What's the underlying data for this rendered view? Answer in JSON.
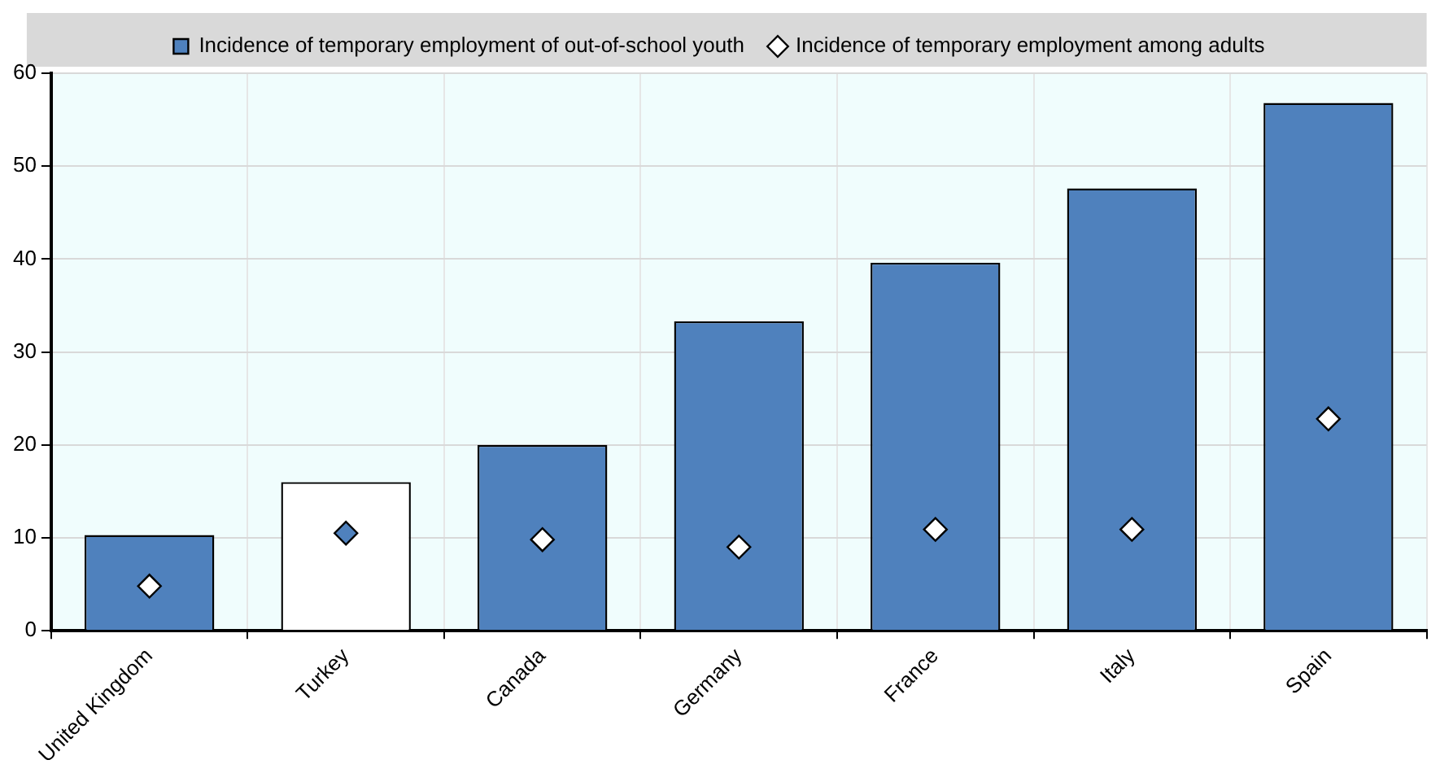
{
  "chart_data": {
    "type": "bar",
    "categories": [
      "United Kingdom",
      "Turkey",
      "Canada",
      "Germany",
      "France",
      "Italy",
      "Spain"
    ],
    "series": [
      {
        "name": "Incidence of temporary employment of out-of-school youth",
        "color": "#4f81bd",
        "colors": [
          "#4f81bd",
          "#ffffff",
          "#4f81bd",
          "#4f81bd",
          "#4f81bd",
          "#4f81bd",
          "#4f81bd"
        ],
        "values": [
          10.3,
          16.0,
          20.0,
          33.3,
          39.6,
          47.6,
          56.8
        ]
      },
      {
        "name": "Incidence of temporary employment among adults",
        "type": "scatter",
        "marker": "diamond",
        "color": "#ffffff",
        "colors": [
          "#ffffff",
          "#4f81bd",
          "#ffffff",
          "#ffffff",
          "#ffffff",
          "#ffffff",
          "#ffffff"
        ],
        "x": [
          "United Kingdom",
          "Turkey",
          "Canada",
          "Germany",
          "France",
          "Italy",
          "Spain"
        ],
        "values": [
          4.8,
          10.5,
          9.8,
          9.0,
          10.9,
          10.9,
          22.8
        ]
      }
    ],
    "ylim": [
      0,
      60
    ],
    "yticks": [
      0,
      10,
      20,
      30,
      40,
      50,
      60
    ],
    "grid": true,
    "legend": "top"
  }
}
